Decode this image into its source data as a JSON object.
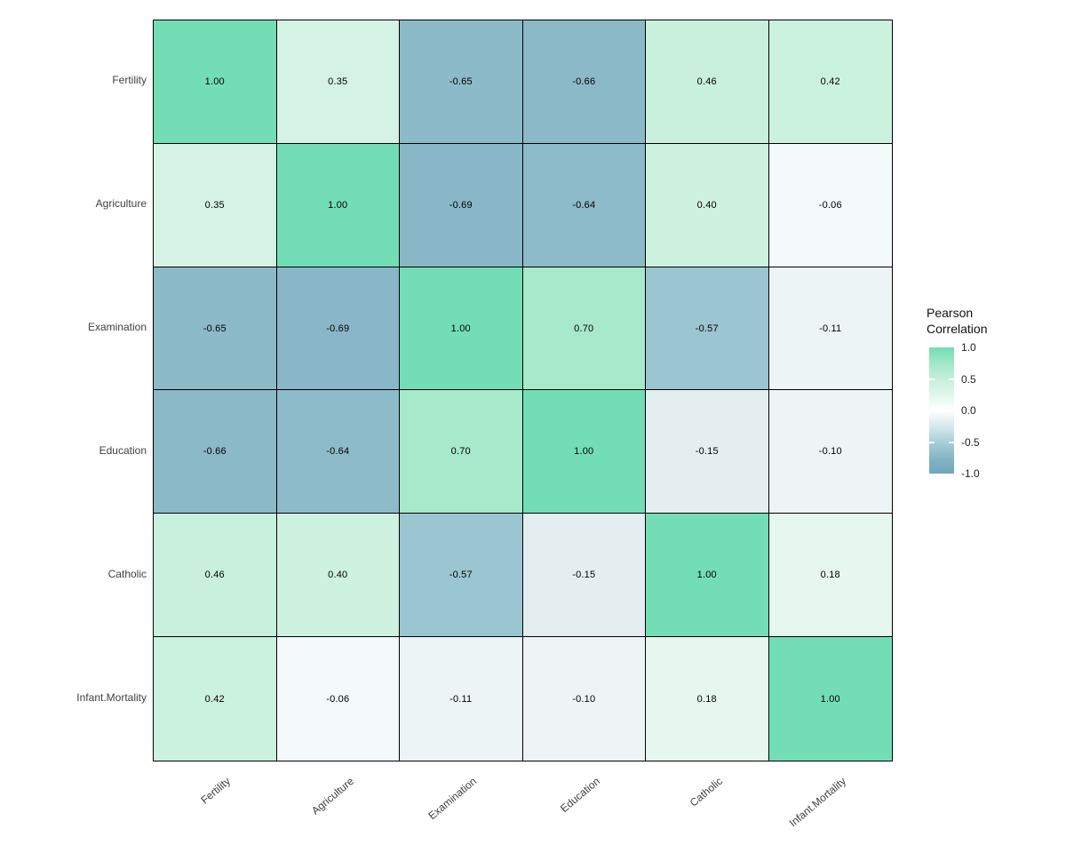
{
  "chart_data": {
    "type": "heatmap",
    "variables": [
      "Fertility",
      "Agriculture",
      "Examination",
      "Education",
      "Catholic",
      "Infant.Mortality"
    ],
    "matrix": [
      [
        1.0,
        0.35,
        -0.65,
        -0.66,
        0.46,
        0.42
      ],
      [
        0.35,
        1.0,
        -0.69,
        -0.64,
        0.4,
        -0.06
      ],
      [
        -0.65,
        -0.69,
        1.0,
        0.7,
        -0.57,
        -0.11
      ],
      [
        -0.66,
        -0.64,
        0.7,
        1.0,
        -0.15,
        -0.1
      ],
      [
        0.46,
        0.4,
        -0.57,
        -0.15,
        1.0,
        0.18
      ],
      [
        0.42,
        -0.06,
        -0.11,
        -0.1,
        0.18,
        1.0
      ]
    ],
    "legend": {
      "title_lines": [
        "Pearson",
        "Correlation"
      ],
      "tick_labels": [
        "1.0",
        "0.5",
        "0.0",
        "-0.5",
        "-1.0"
      ],
      "tick_values": [
        1.0,
        0.5,
        0.0,
        -0.5,
        -1.0
      ],
      "range": [
        -1.0,
        1.0
      ]
    },
    "colors": {
      "high": "#70DDB3",
      "mid": "#FFFFFF",
      "low": "#6FA8BC",
      "cell_border": "#000000",
      "value_colors": {
        "1.00": "#73DEB5",
        "0.70": "#A8E8CB",
        "0.46": "#C8F0DD",
        "0.42": "#CBF1DF",
        "0.40": "#CEF2E0",
        "0.35": "#D4F3E4",
        "0.18": "#E5F7EE",
        "-0.06": "#F4F9FA",
        "-0.10": "#EEF4F6",
        "-0.11": "#EDF4F6",
        "-0.15": "#E4EEF1",
        "-0.57": "#9AC5D1",
        "-0.64": "#8EBBC9",
        "-0.65": "#8DBAC9",
        "-0.66": "#8CB9C8",
        "-0.69": "#89B7C7"
      },
      "legend_stops": [
        [
          0.0,
          "#70DDB3"
        ],
        [
          0.15,
          "#ABE9CC"
        ],
        [
          0.27,
          "#C9F0DE"
        ],
        [
          0.5,
          "#FFFFFF"
        ],
        [
          0.63,
          "#D5E8EC"
        ],
        [
          0.75,
          "#A8CFD8"
        ],
        [
          0.88,
          "#85B4C5"
        ],
        [
          1.0,
          "#6FA8BC"
        ]
      ]
    }
  }
}
